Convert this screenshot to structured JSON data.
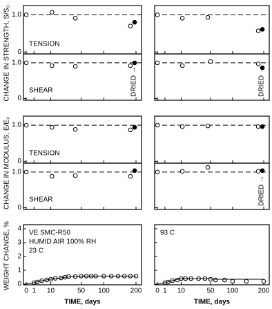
{
  "figure": {
    "ylabels": [
      "CHANGE IN STRENGTH, S/S₀",
      "CHANGE IN MODULUS, E/E₀",
      "WEIGHT CHANGE, %"
    ]
  },
  "chart_data": [
    {
      "type": "scatter",
      "xscale": "sqrt",
      "xlim": [
        0,
        200
      ],
      "xticks": [
        0,
        1,
        10,
        50,
        100,
        200
      ],
      "ylim": [
        -0.05,
        1.25
      ],
      "yticks": [
        0,
        {
          "value": 1,
          "label": "1.0"
        }
      ],
      "ytick_labels": true,
      "reference": 1,
      "label": "TENSION",
      "series": [
        {
          "marker": "open",
          "color": "#000",
          "x": [
            0,
            11,
            40,
            180
          ],
          "values": [
            1,
            1.07,
            0.91,
            0.7
          ]
        },
        {
          "marker": "filled",
          "color": "#000",
          "x": [
            195
          ],
          "values": [
            0.8
          ]
        }
      ]
    },
    {
      "type": "scatter",
      "xscale": "sqrt",
      "xlim": [
        0,
        200
      ],
      "xticks": [
        0,
        1,
        10,
        50,
        100,
        200
      ],
      "ylim": [
        -0.05,
        1.25
      ],
      "yticks": [
        0,
        {
          "value": 1,
          "label": "1.0"
        }
      ],
      "ytick_labels": false,
      "reference": 1,
      "series": [
        {
          "marker": "open",
          "color": "#000",
          "x": [
            0,
            11,
            45,
            180
          ],
          "values": [
            1,
            0.91,
            0.93,
            0.57
          ]
        },
        {
          "marker": "filled",
          "color": "#000",
          "x": [
            195
          ],
          "values": [
            0.61
          ]
        }
      ]
    },
    {
      "type": "scatter",
      "xscale": "sqrt",
      "xlim": [
        0,
        200
      ],
      "xticks": [
        0,
        1,
        10,
        50,
        100,
        200
      ],
      "ylim": [
        -0.05,
        1.25
      ],
      "yticks": [
        0,
        {
          "value": 1,
          "label": "1.0"
        }
      ],
      "ytick_labels": true,
      "reference": 1,
      "label": "SHEAR",
      "annotation": "DRIED →",
      "series": [
        {
          "marker": "open",
          "color": "#000",
          "x": [
            0,
            11,
            40,
            180
          ],
          "values": [
            1,
            0.92,
            0.9,
            0.92
          ]
        },
        {
          "marker": "filled",
          "color": "#000",
          "x": [
            195
          ],
          "values": [
            1.0
          ]
        }
      ]
    },
    {
      "type": "scatter",
      "xscale": "sqrt",
      "xlim": [
        0,
        200
      ],
      "xticks": [
        0,
        1,
        10,
        50,
        100,
        200
      ],
      "ylim": [
        -0.05,
        1.25
      ],
      "yticks": [
        0,
        {
          "value": 1,
          "label": "1.0"
        }
      ],
      "ytick_labels": false,
      "reference": 1,
      "annotation": "DRIED →",
      "series": [
        {
          "marker": "open",
          "color": "#000",
          "x": [
            0,
            11,
            50,
            180
          ],
          "values": [
            1,
            0.92,
            1.04,
            0.97
          ]
        },
        {
          "marker": "filled",
          "color": "#000",
          "x": [
            195
          ],
          "values": [
            0.86
          ]
        }
      ]
    },
    {
      "type": "scatter",
      "xscale": "sqrt",
      "xlim": [
        0,
        200
      ],
      "xticks": [
        0,
        1,
        10,
        50,
        100,
        200
      ],
      "ylim": [
        -0.05,
        1.25
      ],
      "yticks": [
        0,
        {
          "value": 1,
          "label": "1.0"
        }
      ],
      "ytick_labels": true,
      "reference": 1,
      "label": "TENSION",
      "series": [
        {
          "marker": "open",
          "color": "#000",
          "x": [
            0,
            11,
            40,
            180
          ],
          "values": [
            1,
            0.94,
            0.88,
            0.87
          ]
        },
        {
          "marker": "filled",
          "color": "#000",
          "x": [
            195
          ],
          "values": [
            0.94
          ]
        }
      ]
    },
    {
      "type": "scatter",
      "xscale": "sqrt",
      "xlim": [
        0,
        200
      ],
      "xticks": [
        0,
        1,
        10,
        50,
        100,
        200
      ],
      "ylim": [
        -0.05,
        1.25
      ],
      "yticks": [
        0,
        {
          "value": 1,
          "label": "1.0"
        }
      ],
      "ytick_labels": false,
      "reference": 1,
      "series": [
        {
          "marker": "open",
          "color": "#000",
          "x": [
            0,
            11,
            45,
            180
          ],
          "values": [
            1,
            0.96,
            0.98,
            0.96
          ]
        },
        {
          "marker": "filled",
          "color": "#000",
          "x": [
            195
          ],
          "values": [
            0.96
          ]
        }
      ]
    },
    {
      "type": "scatter",
      "xscale": "sqrt",
      "xlim": [
        0,
        200
      ],
      "xticks": [
        0,
        1,
        10,
        50,
        100,
        200
      ],
      "ylim": [
        -0.05,
        1.25
      ],
      "yticks": [
        0,
        {
          "value": 1,
          "label": "1.0"
        }
      ],
      "ytick_labels": true,
      "reference": 1,
      "label": "SHEAR",
      "series": [
        {
          "marker": "open",
          "color": "#000",
          "x": [
            0,
            11,
            40,
            180
          ],
          "values": [
            1,
            0.88,
            0.9,
            0.88
          ]
        },
        {
          "marker": "filled",
          "color": "#000",
          "x": [
            195
          ],
          "values": [
            1.04
          ]
        }
      ]
    },
    {
      "type": "scatter",
      "xscale": "sqrt",
      "xlim": [
        0,
        200
      ],
      "xticks": [
        0,
        1,
        10,
        50,
        100,
        200
      ],
      "ylim": [
        -0.05,
        1.25
      ],
      "yticks": [
        0,
        {
          "value": 1,
          "label": "1.0"
        }
      ],
      "ytick_labels": false,
      "reference": 1,
      "annotation": "DRIED →",
      "series": [
        {
          "marker": "open",
          "color": "#000",
          "x": [
            0,
            11,
            45,
            180
          ],
          "values": [
            1,
            1.02,
            1.13,
            1.02
          ]
        },
        {
          "marker": "filled",
          "color": "#000",
          "x": [
            195
          ],
          "values": [
            1.04
          ]
        }
      ]
    },
    {
      "type": "scatter",
      "xscale": "sqrt",
      "xlim": [
        0,
        200
      ],
      "xticks": [
        0,
        1,
        10,
        50,
        100,
        200
      ],
      "ylim": [
        -0.05,
        4.3
      ],
      "yticks": [
        0,
        1,
        2,
        3,
        4
      ],
      "ytick_labels": true,
      "xlabel": "TIME, days",
      "notes": [
        "VE SMC-R50",
        "HUMID AIR 100% RH",
        "23 C"
      ],
      "series": [
        {
          "marker": "open",
          "color": "#000",
          "x": [
            1,
            2,
            4,
            7,
            10,
            14,
            20,
            25,
            30,
            40,
            50,
            60,
            70,
            80,
            100,
            120,
            140,
            160,
            180,
            200
          ],
          "values": [
            0.1,
            0.15,
            0.25,
            0.3,
            0.35,
            0.42,
            0.45,
            0.5,
            0.55,
            0.55,
            0.58,
            0.58,
            0.58,
            0.58,
            0.58,
            0.58,
            0.58,
            0.58,
            0.58,
            0.58
          ]
        },
        {
          "marker": "line",
          "color": "#000",
          "x": [
            0,
            1,
            4,
            10,
            20,
            30,
            50,
            100,
            200
          ],
          "values": [
            0,
            0.1,
            0.25,
            0.35,
            0.45,
            0.52,
            0.58,
            0.58,
            0.58
          ]
        }
      ]
    },
    {
      "type": "scatter",
      "xscale": "sqrt",
      "xlim": [
        0,
        200
      ],
      "xticks": [
        0,
        1,
        10,
        50,
        100,
        200
      ],
      "ylim": [
        -0.05,
        4.3
      ],
      "yticks": [
        0,
        1,
        2,
        3,
        4
      ],
      "ytick_labels": false,
      "xlabel": "TIME, days",
      "notes": [
        "93 C"
      ],
      "series": [
        {
          "marker": "open",
          "color": "#000",
          "x": [
            1,
            2,
            4,
            7,
            10,
            14,
            20,
            30,
            40,
            50,
            60,
            80,
            100,
            140,
            200
          ],
          "values": [
            0.1,
            0.15,
            0.25,
            0.3,
            0.4,
            0.4,
            0.4,
            0.4,
            0.4,
            0.35,
            0.3,
            0.3,
            0.2,
            0.2,
            0.2
          ]
        },
        {
          "marker": "line",
          "color": "#000",
          "x": [
            0,
            1,
            4,
            10,
            40,
            60,
            100,
            200
          ],
          "values": [
            0,
            0.1,
            0.25,
            0.4,
            0.4,
            0.35,
            0.35,
            0.35
          ]
        }
      ]
    }
  ]
}
